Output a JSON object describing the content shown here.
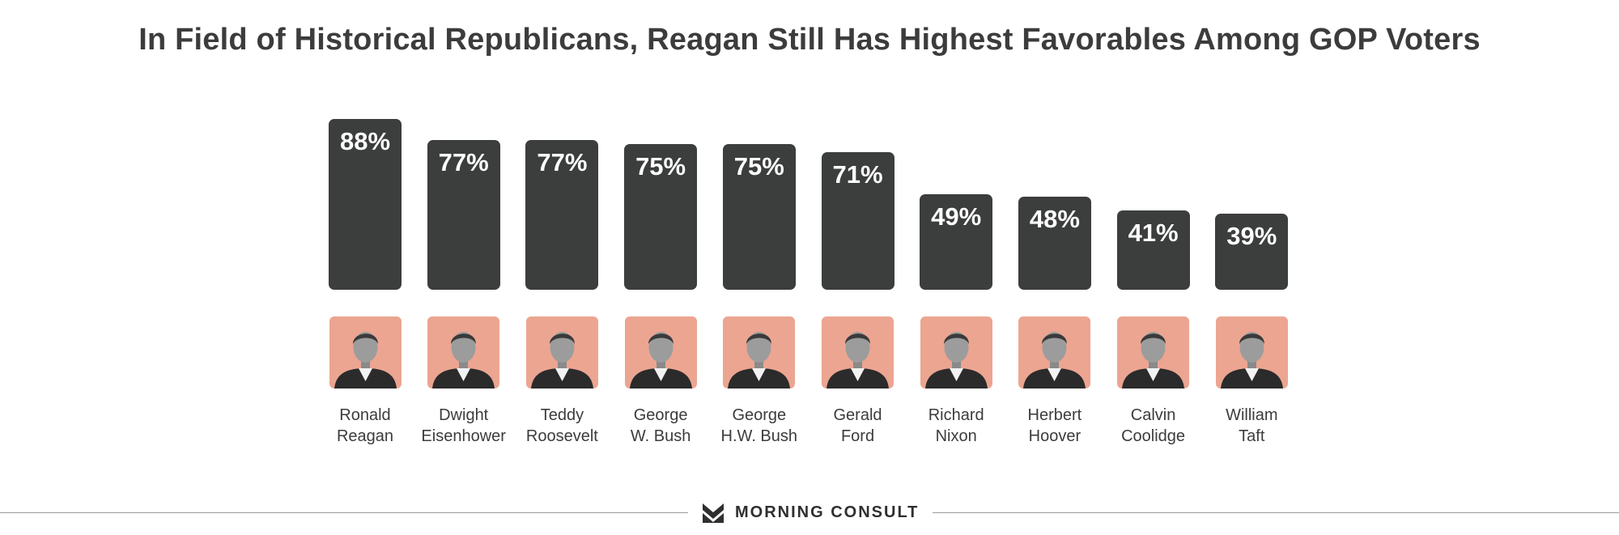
{
  "title": "In Field of Historical Republicans, Reagan Still Has Highest Favorables Among GOP Voters",
  "brand": {
    "name": "MORNING CONSULT",
    "logo_icon": "morning-consult-logo-icon"
  },
  "colors": {
    "bar": "#3c3d3d",
    "photo_bg": "#eca591",
    "text": "#3c3c3c",
    "footer_line": "#9a9a9a"
  },
  "chart_data": {
    "type": "bar",
    "title": "In Field of Historical Republicans, Reagan Still Has Highest Favorables Among GOP Voters",
    "categories": [
      "Ronald Reagan",
      "Dwight Eisenhower",
      "Teddy Roosevelt",
      "George W. Bush",
      "George H.W. Bush",
      "Gerald Ford",
      "Richard Nixon",
      "Herbert Hoover",
      "Calvin Coolidge",
      "William Taft"
    ],
    "name_lines": [
      [
        "Ronald",
        "Reagan"
      ],
      [
        "Dwight",
        "Eisenhower"
      ],
      [
        "Teddy",
        "Roosevelt"
      ],
      [
        "George",
        "W. Bush"
      ],
      [
        "George",
        "H.W. Bush"
      ],
      [
        "Gerald",
        "Ford"
      ],
      [
        "Richard",
        "Nixon"
      ],
      [
        "Herbert",
        "Hoover"
      ],
      [
        "Calvin",
        "Coolidge"
      ],
      [
        "William",
        "Taft"
      ]
    ],
    "values": [
      88,
      77,
      77,
      75,
      75,
      71,
      49,
      48,
      41,
      39
    ],
    "labels": [
      "88%",
      "77%",
      "77%",
      "75%",
      "75%",
      "71%",
      "49%",
      "48%",
      "41%",
      "39%"
    ],
    "unit": "%",
    "grid": false,
    "legend": "none",
    "ylim": [
      0,
      100
    ]
  }
}
